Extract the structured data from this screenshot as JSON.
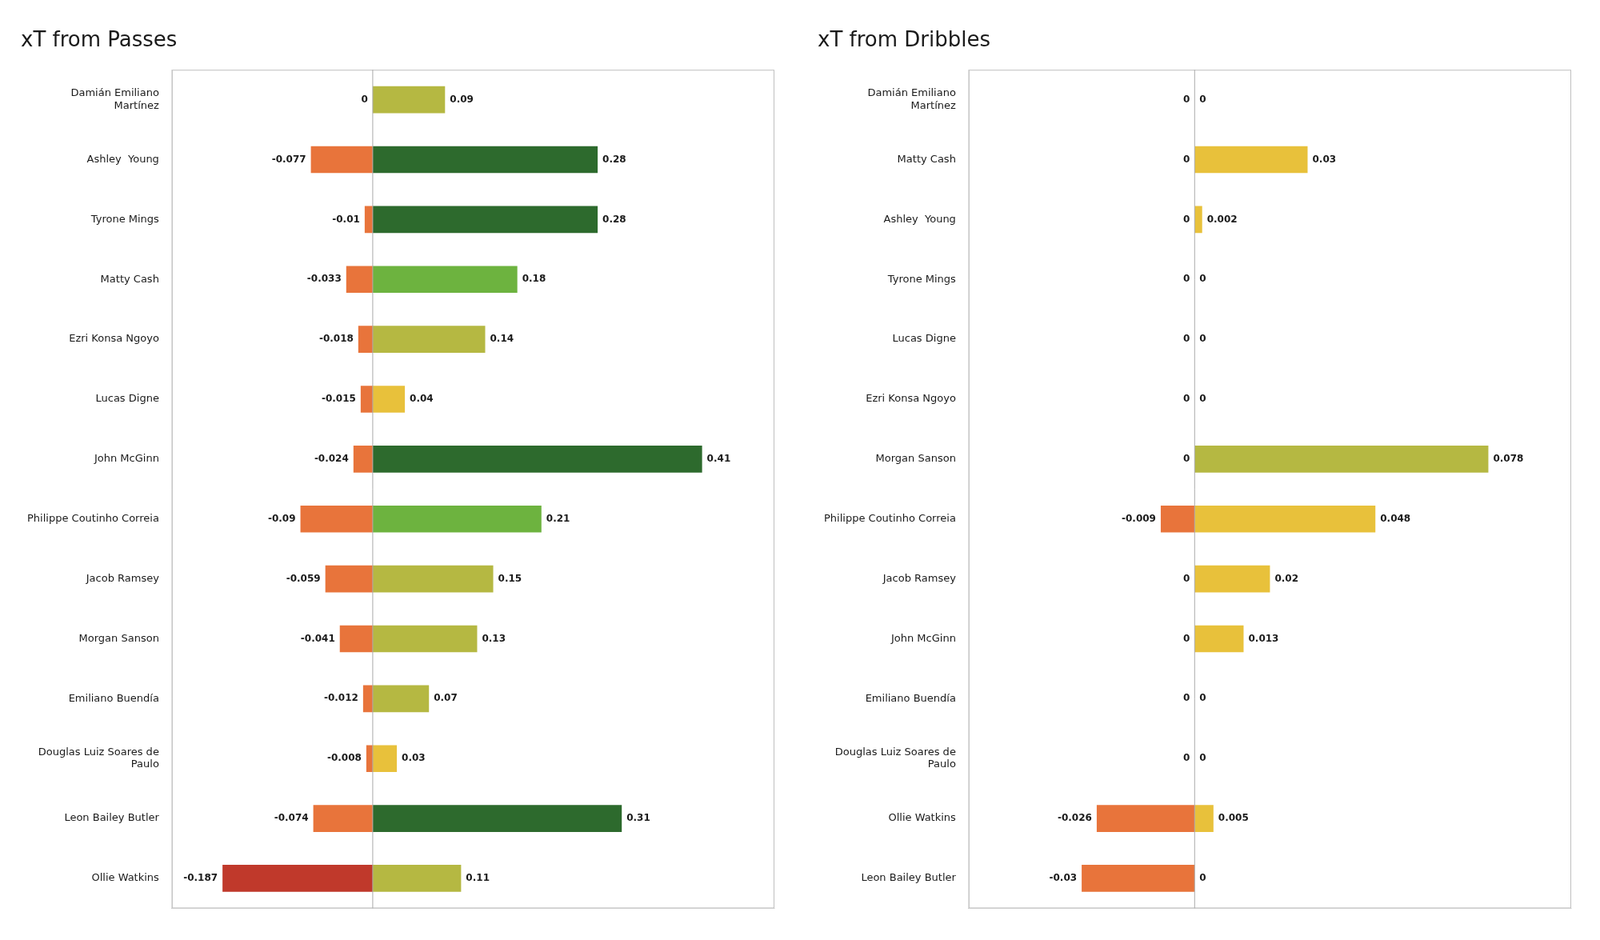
{
  "chart_data": [
    {
      "type": "bar",
      "orientation": "horizontal",
      "stacked": true,
      "title": "xT from Passes",
      "categories": [
        "Damián Emiliano\nMartínez",
        "Ashley  Young",
        "Tyrone Mings",
        "Matty Cash",
        "Ezri Konsa Ngoyo",
        "Lucas Digne",
        "John McGinn",
        "Philippe Coutinho Correia",
        "Jacob Ramsey",
        "Morgan Sanson",
        "Emiliano Buendía",
        "Douglas Luiz Soares de\nPaulo",
        "Leon Bailey Butler",
        "Ollie Watkins"
      ],
      "series": [
        {
          "values": [
            0,
            -0.077,
            -0.01,
            -0.033,
            -0.018,
            -0.015,
            -0.024,
            -0.09,
            -0.059,
            -0.041,
            -0.012,
            -0.008,
            -0.074,
            -0.187
          ],
          "colors": [
            "#e8743b",
            "#e8743b",
            "#e8743b",
            "#e8743b",
            "#e8743b",
            "#e8743b",
            "#e8743b",
            "#e8743b",
            "#e8743b",
            "#e8743b",
            "#e8743b",
            "#e8743b",
            "#e8743b",
            "#c0392b"
          ]
        },
        {
          "values": [
            0.09,
            0.28,
            0.28,
            0.18,
            0.14,
            0.04,
            0.41,
            0.21,
            0.15,
            0.13,
            0.07,
            0.03,
            0.31,
            0.11
          ],
          "colors": [
            "#b5b842",
            "#2d6a2d",
            "#2d6a2d",
            "#6db33f",
            "#b5b842",
            "#e8c13b",
            "#2d6a2d",
            "#6db33f",
            "#b5b842",
            "#b5b842",
            "#b5b842",
            "#e8c13b",
            "#2d6a2d",
            "#b5b842"
          ]
        }
      ],
      "xlim": [
        -0.25,
        0.5
      ],
      "data_labels": true,
      "tick_labels": "y",
      "grid": false
    },
    {
      "type": "bar",
      "orientation": "horizontal",
      "stacked": true,
      "title": "xT from Dribbles",
      "categories": [
        "Damián Emiliano\nMartínez",
        "Matty Cash",
        "Ashley  Young",
        "Tyrone Mings",
        "Lucas Digne",
        "Ezri Konsa Ngoyo",
        "Morgan Sanson",
        "Philippe Coutinho Correia",
        "Jacob Ramsey",
        "John McGinn",
        "Emiliano Buendía",
        "Douglas Luiz Soares de\nPaulo",
        "Ollie Watkins",
        "Leon Bailey Butler"
      ],
      "series": [
        {
          "values": [
            0,
            0,
            0,
            0,
            0,
            0,
            0,
            -0.009,
            0,
            0,
            0,
            0,
            -0.026,
            -0.03
          ],
          "colors": [
            "#e8743b",
            "#e8743b",
            "#e8743b",
            "#e8743b",
            "#e8743b",
            "#e8743b",
            "#e8743b",
            "#e8743b",
            "#e8743b",
            "#e8743b",
            "#e8743b",
            "#e8743b",
            "#e8743b",
            "#e8743b"
          ]
        },
        {
          "values": [
            0,
            0.03,
            0.002,
            0,
            0,
            0,
            0.078,
            0.048,
            0.02,
            0.013,
            0,
            0,
            0.005,
            0
          ],
          "colors": [
            "#b5b842",
            "#e8c13b",
            "#e8c13b",
            "#b5b842",
            "#b5b842",
            "#b5b842",
            "#b5b842",
            "#e8c13b",
            "#e8c13b",
            "#e8c13b",
            "#b5b842",
            "#b5b842",
            "#e8c13b",
            "#b5b842"
          ]
        }
      ],
      "xlim": [
        -0.06,
        0.1
      ],
      "data_labels": true,
      "tick_labels": "y",
      "grid": false
    }
  ]
}
